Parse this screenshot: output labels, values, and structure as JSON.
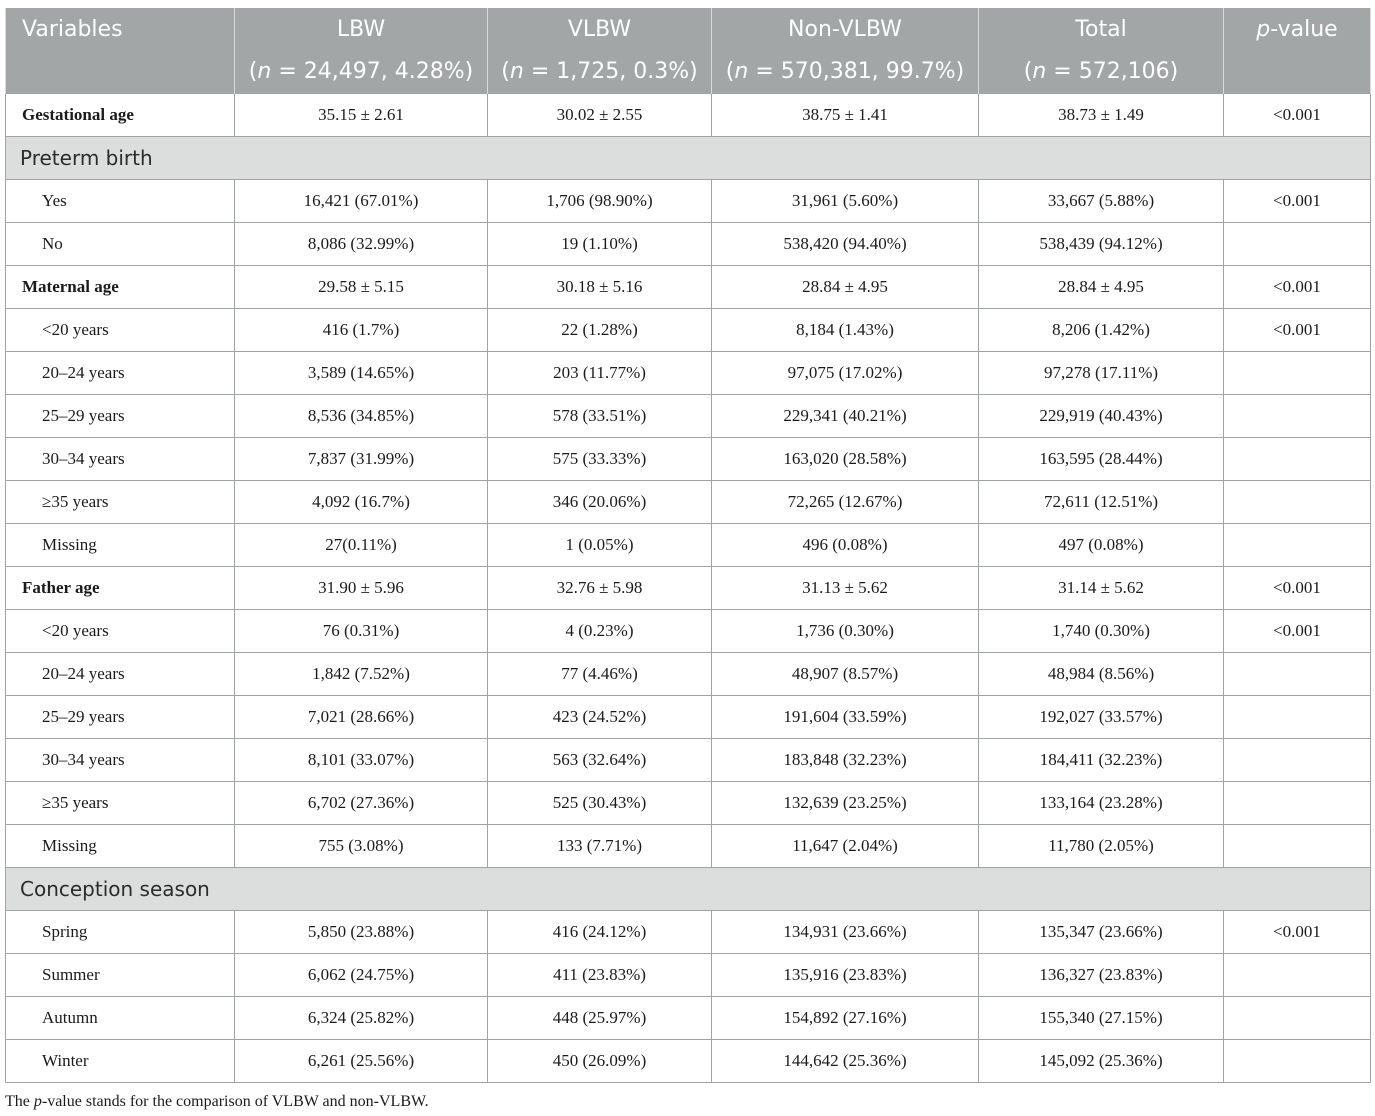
{
  "header": {
    "col0": "Variables",
    "col1": "LBW",
    "col1_n": "(n = 24,497, 4.28%)",
    "col2": "VLBW",
    "col2_n": "(n = 1,725, 0.3%)",
    "col3": "Non-VLBW",
    "col3_n": "(n = 570,381, 99.7%)",
    "col4": "Total",
    "col4_n": "(n = 572,106)",
    "col5_italic": "p",
    "col5_rest": "-value"
  },
  "rows": [
    {
      "type": "bold",
      "label": "Gestational age",
      "lbw": "35.15 ± 2.61",
      "vlbw": "30.02 ± 2.55",
      "nonvlbw": "38.75 ± 1.41",
      "total": "38.73 ± 1.49",
      "p": "<0.001"
    },
    {
      "type": "section",
      "label": "Preterm birth"
    },
    {
      "type": "sub",
      "label": "Yes",
      "lbw": "16,421 (67.01%)",
      "vlbw": "1,706 (98.90%)",
      "nonvlbw": "31,961 (5.60%)",
      "total": "33,667 (5.88%)",
      "p": "<0.001"
    },
    {
      "type": "sub",
      "label": "No",
      "lbw": "8,086 (32.99%)",
      "vlbw": "19 (1.10%)",
      "nonvlbw": "538,420 (94.40%)",
      "total": "538,439 (94.12%)",
      "p": ""
    },
    {
      "type": "bold",
      "label": "Maternal age",
      "lbw": "29.58 ± 5.15",
      "vlbw": "30.18 ± 5.16",
      "nonvlbw": "28.84 ± 4.95",
      "total": "28.84 ± 4.95",
      "p": "<0.001"
    },
    {
      "type": "sub",
      "label": "<20 years",
      "lbw": "416 (1.7%)",
      "vlbw": "22 (1.28%)",
      "nonvlbw": "8,184 (1.43%)",
      "total": "8,206 (1.42%)",
      "p": "<0.001"
    },
    {
      "type": "sub",
      "label": "20–24 years",
      "lbw": "3,589 (14.65%)",
      "vlbw": "203 (11.77%)",
      "nonvlbw": "97,075 (17.02%)",
      "total": "97,278 (17.11%)",
      "p": ""
    },
    {
      "type": "sub",
      "label": "25–29 years",
      "lbw": "8,536 (34.85%)",
      "vlbw": "578 (33.51%)",
      "nonvlbw": "229,341 (40.21%)",
      "total": "229,919 (40.43%)",
      "p": ""
    },
    {
      "type": "sub",
      "label": "30–34 years",
      "lbw": "7,837 (31.99%)",
      "vlbw": "575 (33.33%)",
      "nonvlbw": "163,020 (28.58%)",
      "total": "163,595 (28.44%)",
      "p": ""
    },
    {
      "type": "sub",
      "label": "≥35 years",
      "lbw": "4,092 (16.7%)",
      "vlbw": "346 (20.06%)",
      "nonvlbw": "72,265 (12.67%)",
      "total": "72,611 (12.51%)",
      "p": ""
    },
    {
      "type": "sub",
      "label": "Missing",
      "lbw": "27(0.11%)",
      "vlbw": "1 (0.05%)",
      "nonvlbw": "496 (0.08%)",
      "total": "497 (0.08%)",
      "p": ""
    },
    {
      "type": "bold",
      "label": "Father age",
      "lbw": "31.90 ± 5.96",
      "vlbw": "32.76 ± 5.98",
      "nonvlbw": "31.13 ± 5.62",
      "total": "31.14 ± 5.62",
      "p": "<0.001"
    },
    {
      "type": "sub",
      "label": "<20 years",
      "lbw": "76 (0.31%)",
      "vlbw": "4 (0.23%)",
      "nonvlbw": "1,736 (0.30%)",
      "total": "1,740 (0.30%)",
      "p": "<0.001"
    },
    {
      "type": "sub",
      "label": "20–24 years",
      "lbw": "1,842 (7.52%)",
      "vlbw": "77 (4.46%)",
      "nonvlbw": "48,907 (8.57%)",
      "total": "48,984 (8.56%)",
      "p": ""
    },
    {
      "type": "sub",
      "label": "25–29 years",
      "lbw": "7,021 (28.66%)",
      "vlbw": "423 (24.52%)",
      "nonvlbw": "191,604 (33.59%)",
      "total": "192,027 (33.57%)",
      "p": ""
    },
    {
      "type": "sub",
      "label": "30–34 years",
      "lbw": "8,101 (33.07%)",
      "vlbw": "563 (32.64%)",
      "nonvlbw": "183,848 (32.23%)",
      "total": "184,411 (32.23%)",
      "p": ""
    },
    {
      "type": "sub",
      "label": "≥35 years",
      "lbw": "6,702 (27.36%)",
      "vlbw": "525 (30.43%)",
      "nonvlbw": "132,639 (23.25%)",
      "total": "133,164 (23.28%)",
      "p": ""
    },
    {
      "type": "sub",
      "label": "Missing",
      "lbw": "755 (3.08%)",
      "vlbw": "133 (7.71%)",
      "nonvlbw": "11,647 (2.04%)",
      "total": "11,780 (2.05%)",
      "p": ""
    },
    {
      "type": "section",
      "label": "Conception season"
    },
    {
      "type": "sub",
      "label": "Spring",
      "lbw": "5,850 (23.88%)",
      "vlbw": "416 (24.12%)",
      "nonvlbw": "134,931 (23.66%)",
      "total": "135,347 (23.66%)",
      "p": "<0.001"
    },
    {
      "type": "sub",
      "label": "Summer",
      "lbw": "6,062 (24.75%)",
      "vlbw": "411 (23.83%)",
      "nonvlbw": "135,916 (23.83%)",
      "total": "136,327 (23.83%)",
      "p": ""
    },
    {
      "type": "sub",
      "label": "Autumn",
      "lbw": "6,324 (25.82%)",
      "vlbw": "448 (25.97%)",
      "nonvlbw": "154,892 (27.16%)",
      "total": "155,340 (27.15%)",
      "p": ""
    },
    {
      "type": "sub",
      "label": "Winter",
      "lbw": "6,261 (25.56%)",
      "vlbw": "450 (26.09%)",
      "nonvlbw": "144,642 (25.36%)",
      "total": "145,092 (25.36%)",
      "p": ""
    }
  ],
  "footnote": {
    "pre": "The ",
    "italic": "p",
    "post": "-value stands for the comparison of VLBW and non-VLBW."
  }
}
